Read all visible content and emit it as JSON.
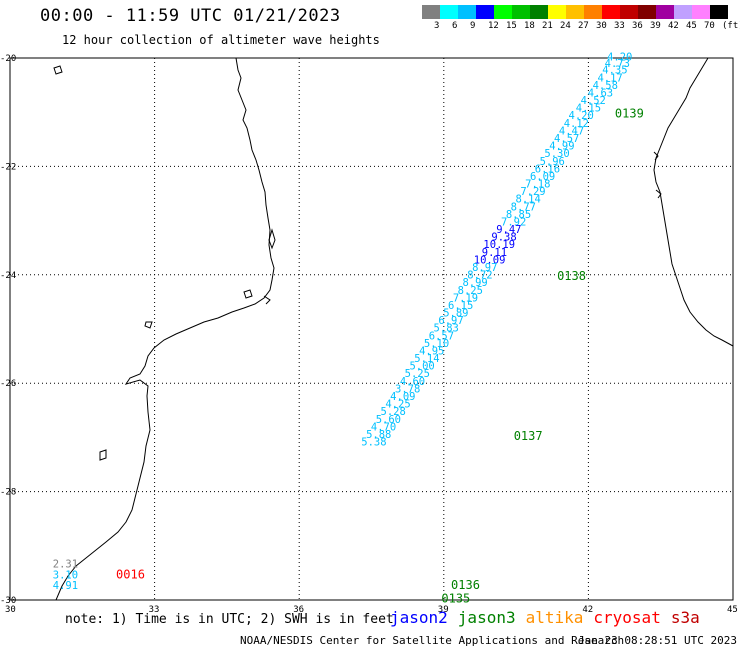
{
  "title": "00:00 - 11:59 UTC 01/21/2023",
  "subtitle": "12 hour collection of altimeter wave heights",
  "color_scale": {
    "labels": [
      "3",
      "6",
      "9",
      "12",
      "15",
      "18",
      "21",
      "24",
      "27",
      "30",
      "33",
      "36",
      "39",
      "42",
      "45",
      "70",
      "(ft)"
    ],
    "colors": [
      "#808080",
      "#00ffff",
      "#00c0ff",
      "#0000ff",
      "#00ff00",
      "#00c000",
      "#008000",
      "#ffff00",
      "#ffc000",
      "#ff8000",
      "#ff0000",
      "#c00000",
      "#800000",
      "#a000a0",
      "#c0a0ff",
      "#ff80ff",
      "#000000"
    ]
  },
  "map": {
    "lon_ticks": [
      "30",
      "33",
      "36",
      "39",
      "42",
      "45"
    ],
    "lat_ticks": [
      "-20",
      "-22",
      "-24",
      "-26",
      "-28",
      "-30"
    ],
    "lon_range": [
      30,
      45
    ],
    "lat_range": [
      -20,
      -30
    ]
  },
  "tracks": [
    {
      "id": "0139",
      "color": "#008000",
      "lon": 42.55,
      "lat": -21.1
    },
    {
      "id": "0138",
      "color": "#008000",
      "lon": 41.35,
      "lat": -24.1
    },
    {
      "id": "0137",
      "color": "#008000",
      "lon": 40.45,
      "lat": -27.05
    },
    {
      "id": "0136",
      "color": "#008000",
      "lon": 39.15,
      "lat": -29.8
    },
    {
      "id": "0135",
      "color": "#008000",
      "lon": 38.95,
      "lat": -30.05
    },
    {
      "id": "0016",
      "color": "#ff0000",
      "lon": 32.2,
      "lat": -29.6
    }
  ],
  "wave_points": [
    {
      "v": "4.20",
      "c": "#00c0ff",
      "lon": 42.65,
      "lat": -20.05
    },
    {
      "v": "4.73",
      "c": "#00c0ff",
      "lon": 42.6,
      "lat": -20.17
    },
    {
      "v": "4.35",
      "c": "#00c0ff",
      "lon": 42.55,
      "lat": -20.29
    },
    {
      "v": "4.17",
      "c": "#00c0ff",
      "lon": 42.45,
      "lat": -20.43
    },
    {
      "v": "4.58",
      "c": "#00c0ff",
      "lon": 42.35,
      "lat": -20.57
    },
    {
      "v": "4.63",
      "c": "#00c0ff",
      "lon": 42.25,
      "lat": -20.71
    },
    {
      "v": "4.52",
      "c": "#00c0ff",
      "lon": 42.1,
      "lat": -20.85
    },
    {
      "v": "4.15",
      "c": "#00c0ff",
      "lon": 42.0,
      "lat": -20.99
    },
    {
      "v": "4.20",
      "c": "#00c0ff",
      "lon": 41.85,
      "lat": -21.13
    },
    {
      "v": "4.12",
      "c": "#00c0ff",
      "lon": 41.75,
      "lat": -21.27
    },
    {
      "v": "4.47",
      "c": "#00c0ff",
      "lon": 41.65,
      "lat": -21.41
    },
    {
      "v": "4.57",
      "c": "#00c0ff",
      "lon": 41.55,
      "lat": -21.55
    },
    {
      "v": "4.99",
      "c": "#00c0ff",
      "lon": 41.45,
      "lat": -21.69
    },
    {
      "v": "5.30",
      "c": "#00c0ff",
      "lon": 41.35,
      "lat": -21.83
    },
    {
      "v": "5.96",
      "c": "#00c0ff",
      "lon": 41.25,
      "lat": -21.97
    },
    {
      "v": "6.16",
      "c": "#00c0ff",
      "lon": 41.15,
      "lat": -22.11
    },
    {
      "v": "6.09",
      "c": "#00c0ff",
      "lon": 41.05,
      "lat": -22.25
    },
    {
      "v": "7.18",
      "c": "#00c0ff",
      "lon": 40.95,
      "lat": -22.39
    },
    {
      "v": "7.29",
      "c": "#00c0ff",
      "lon": 40.85,
      "lat": -22.53
    },
    {
      "v": "8.14",
      "c": "#00c0ff",
      "lon": 40.75,
      "lat": -22.67
    },
    {
      "v": "8.77",
      "c": "#00c0ff",
      "lon": 40.65,
      "lat": -22.81
    },
    {
      "v": "8.85",
      "c": "#00c0ff",
      "lon": 40.55,
      "lat": -22.95
    },
    {
      "v": "7.92",
      "c": "#00c0ff",
      "lon": 40.45,
      "lat": -23.09
    },
    {
      "v": "9.47",
      "c": "#0000ff",
      "lon": 40.35,
      "lat": -23.23
    },
    {
      "v": "9.38",
      "c": "#0000ff",
      "lon": 40.25,
      "lat": -23.37
    },
    {
      "v": "10.19",
      "c": "#0000ff",
      "lon": 40.15,
      "lat": -23.51
    },
    {
      "v": "9.11",
      "c": "#0000ff",
      "lon": 40.05,
      "lat": -23.65
    },
    {
      "v": "10.09",
      "c": "#0000ff",
      "lon": 39.95,
      "lat": -23.79
    },
    {
      "v": "8.97",
      "c": "#00c0ff",
      "lon": 39.85,
      "lat": -23.93
    },
    {
      "v": "8.72",
      "c": "#00c0ff",
      "lon": 39.75,
      "lat": -24.07
    },
    {
      "v": "8.99",
      "c": "#00c0ff",
      "lon": 39.65,
      "lat": -24.21
    },
    {
      "v": "8.25",
      "c": "#00c0ff",
      "lon": 39.55,
      "lat": -24.35
    },
    {
      "v": "7.19",
      "c": "#00c0ff",
      "lon": 39.45,
      "lat": -24.49
    },
    {
      "v": "6.15",
      "c": "#00c0ff",
      "lon": 39.35,
      "lat": -24.63
    },
    {
      "v": "5.89",
      "c": "#00c0ff",
      "lon": 39.25,
      "lat": -24.77
    },
    {
      "v": "6.97",
      "c": "#00c0ff",
      "lon": 39.15,
      "lat": -24.91
    },
    {
      "v": "5.83",
      "c": "#00c0ff",
      "lon": 39.05,
      "lat": -25.05
    },
    {
      "v": "6.57",
      "c": "#00c0ff",
      "lon": 38.95,
      "lat": -25.19
    },
    {
      "v": "5.10",
      "c": "#00c0ff",
      "lon": 38.85,
      "lat": -25.33
    },
    {
      "v": "4.95",
      "c": "#00c0ff",
      "lon": 38.75,
      "lat": -25.47
    },
    {
      "v": "5.14",
      "c": "#00c0ff",
      "lon": 38.65,
      "lat": -25.61
    },
    {
      "v": "5.00",
      "c": "#00c0ff",
      "lon": 38.55,
      "lat": -25.75
    },
    {
      "v": "5.25",
      "c": "#00c0ff",
      "lon": 38.45,
      "lat": -25.89
    },
    {
      "v": "4.60",
      "c": "#00c0ff",
      "lon": 38.35,
      "lat": -26.03
    },
    {
      "v": "3.78",
      "c": "#00c0ff",
      "lon": 38.25,
      "lat": -26.17
    },
    {
      "v": "4.09",
      "c": "#00c0ff",
      "lon": 38.15,
      "lat": -26.31
    },
    {
      "v": "4.25",
      "c": "#00c0ff",
      "lon": 38.05,
      "lat": -26.45
    },
    {
      "v": "5.28",
      "c": "#00c0ff",
      "lon": 37.95,
      "lat": -26.59
    },
    {
      "v": "5.60",
      "c": "#00c0ff",
      "lon": 37.85,
      "lat": -26.73
    },
    {
      "v": "4.70",
      "c": "#00c0ff",
      "lon": 37.75,
      "lat": -26.87
    },
    {
      "v": "5.88",
      "c": "#00c0ff",
      "lon": 37.65,
      "lat": -27.01
    },
    {
      "v": "5.38",
      "c": "#00c0ff",
      "lon": 37.55,
      "lat": -27.15
    },
    {
      "v": "2.31",
      "c": "#808080",
      "lon": 31.15,
      "lat": -29.4
    },
    {
      "v": "3.10",
      "c": "#00c0ff",
      "lon": 31.15,
      "lat": -29.6
    },
    {
      "v": "4.91",
      "c": "#00c0ff",
      "lon": 31.15,
      "lat": -29.8
    }
  ],
  "note": "note: 1) Time is in UTC; 2) SWH is in feet",
  "satellites": [
    {
      "name": "jason2",
      "color": "#0000ff"
    },
    {
      "name": "jason3",
      "color": "#008000"
    },
    {
      "name": "altika",
      "color": "#ff9000"
    },
    {
      "name": "cryosat",
      "color": "#ff0000"
    },
    {
      "name": "s3a",
      "color": "#c00000"
    }
  ],
  "credit": "NOAA/NESDIS Center for Satellite Applications and Research",
  "timestamp": "Jan 23 08:28:51 UTC 2023"
}
